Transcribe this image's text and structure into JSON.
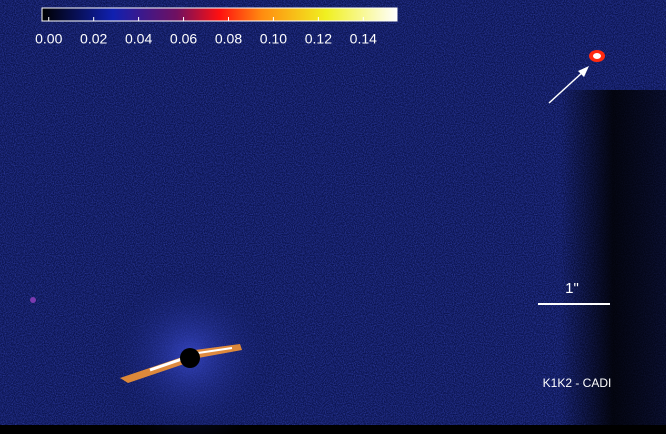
{
  "colorbar": {
    "range": [
      -0.003,
      0.155
    ],
    "ticks": [
      {
        "value": 0,
        "label": "0.00"
      },
      {
        "value": 0.02,
        "label": "0.02"
      },
      {
        "value": 0.04,
        "label": "0.04"
      },
      {
        "value": 0.06,
        "label": "0.06"
      },
      {
        "value": 0.08,
        "label": "0.08"
      },
      {
        "value": 0.1,
        "label": "0.10"
      },
      {
        "value": 0.12,
        "label": "0.12"
      },
      {
        "value": 0.14,
        "label": "0.14"
      }
    ]
  },
  "scale_bar": {
    "label": "1\""
  },
  "annotation": "K1K2 - CADI"
}
